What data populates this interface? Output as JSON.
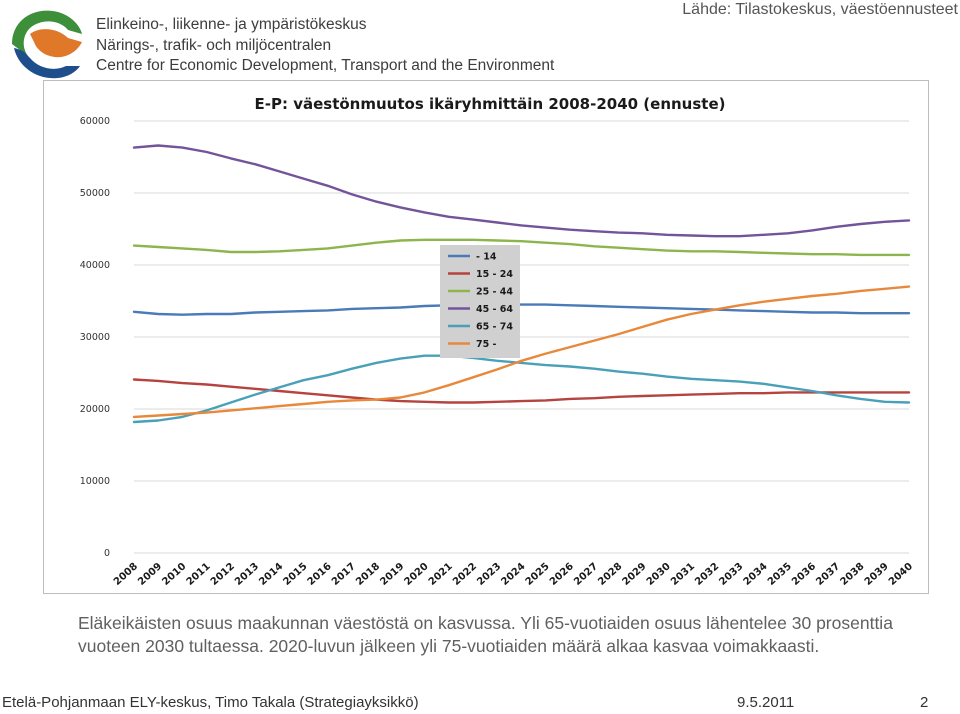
{
  "header": {
    "org_fi": "Elinkeino-, liikenne- ja ympäristökeskus",
    "org_sv": "Närings-, trafik- och miljöcentralen",
    "org_en": "Centre for Economic Development, Transport and the Environment",
    "source": "Lähde: Tilastokeskus, väestöennusteet"
  },
  "logo": {
    "icon": "ely-centre-logo-icon",
    "colors": [
      "#1f4e8c",
      "#3d8f3a",
      "#e0782a"
    ]
  },
  "chart_data": {
    "type": "line",
    "title": "E-P: väestönmuutos ikäryhmittäin 2008-2040 (ennuste)",
    "xlabel": "",
    "ylabel": "",
    "ylim": [
      0,
      60000
    ],
    "yticks": [
      0,
      10000,
      20000,
      30000,
      40000,
      50000,
      60000
    ],
    "ytick_labels": [
      "0",
      "10000",
      "20000",
      "30000",
      "40000",
      "50000",
      "60000"
    ],
    "grid": true,
    "legend_position": "center",
    "categories": [
      "2008",
      "2009",
      "2010",
      "2011",
      "2012",
      "2013",
      "2014",
      "2015",
      "2016",
      "2017",
      "2018",
      "2019",
      "2020",
      "2021",
      "2022",
      "2023",
      "2024",
      "2025",
      "2026",
      "2027",
      "2028",
      "2029",
      "2030",
      "2031",
      "2032",
      "2033",
      "2034",
      "2035",
      "2036",
      "2037",
      "2038",
      "2039",
      "2040"
    ],
    "series": [
      {
        "name": "- 14",
        "color": "#4a7ab8",
        "values": [
          33500,
          33200,
          33100,
          33200,
          33200,
          33400,
          33500,
          33600,
          33700,
          33900,
          34000,
          34100,
          34300,
          34400,
          34500,
          34500,
          34500,
          34500,
          34400,
          34300,
          34200,
          34100,
          34000,
          33900,
          33800,
          33700,
          33600,
          33500,
          33400,
          33400,
          33300,
          33300,
          33300
        ]
      },
      {
        "name": "15 - 24",
        "color": "#b5433f",
        "values": [
          24100,
          23900,
          23600,
          23400,
          23100,
          22800,
          22500,
          22200,
          21900,
          21600,
          21300,
          21100,
          21000,
          20900,
          20900,
          21000,
          21100,
          21200,
          21400,
          21500,
          21700,
          21800,
          21900,
          22000,
          22100,
          22200,
          22200,
          22300,
          22300,
          22300,
          22300,
          22300,
          22300
        ]
      },
      {
        "name": "25 - 44",
        "color": "#8db54e",
        "values": [
          42700,
          42500,
          42300,
          42100,
          41800,
          41800,
          41900,
          42100,
          42300,
          42700,
          43100,
          43400,
          43500,
          43500,
          43500,
          43400,
          43300,
          43100,
          42900,
          42600,
          42400,
          42200,
          42000,
          41900,
          41900,
          41800,
          41700,
          41600,
          41500,
          41500,
          41400,
          41400,
          41400
        ]
      },
      {
        "name": "45 - 64",
        "color": "#73549a",
        "values": [
          56300,
          56600,
          56300,
          55700,
          54800,
          54000,
          53000,
          52000,
          51000,
          49800,
          48800,
          48000,
          47300,
          46700,
          46300,
          45900,
          45500,
          45200,
          44900,
          44700,
          44500,
          44400,
          44200,
          44100,
          44000,
          44000,
          44200,
          44400,
          44800,
          45300,
          45700,
          46000,
          46200
        ]
      },
      {
        "name": "65 - 74",
        "color": "#4aa0b8",
        "values": [
          18200,
          18400,
          18900,
          19800,
          20900,
          22000,
          23000,
          24000,
          24700,
          25600,
          26400,
          27000,
          27400,
          27400,
          27100,
          26700,
          26400,
          26100,
          25900,
          25600,
          25200,
          24900,
          24500,
          24200,
          24000,
          23800,
          23500,
          23000,
          22500,
          21900,
          21400,
          21000,
          20900
        ]
      },
      {
        "name": "75 -",
        "color": "#e8883a",
        "values": [
          18900,
          19100,
          19300,
          19500,
          19800,
          20100,
          20400,
          20700,
          21000,
          21200,
          21300,
          21600,
          22300,
          23300,
          24400,
          25500,
          26700,
          27700,
          28600,
          29500,
          30400,
          31400,
          32400,
          33200,
          33800,
          34400,
          34900,
          35300,
          35700,
          36000,
          36400,
          36700,
          37000
        ]
      }
    ]
  },
  "caption": "Eläkeikäisten osuus maakunnan väestöstä on kasvussa. Yli 65-vuotiaiden osuus lähentelee 30 prosenttia vuoteen 2030 tultaessa. 2020-luvun jälkeen yli 75-vuotiaiden määrä alkaa kasvaa voimakkaasti.",
  "footer": {
    "left": "Etelä-Pohjanmaan ELY-keskus, Timo Takala (Strategiayksikkö)",
    "date": "9.5.2011",
    "page": "2"
  }
}
